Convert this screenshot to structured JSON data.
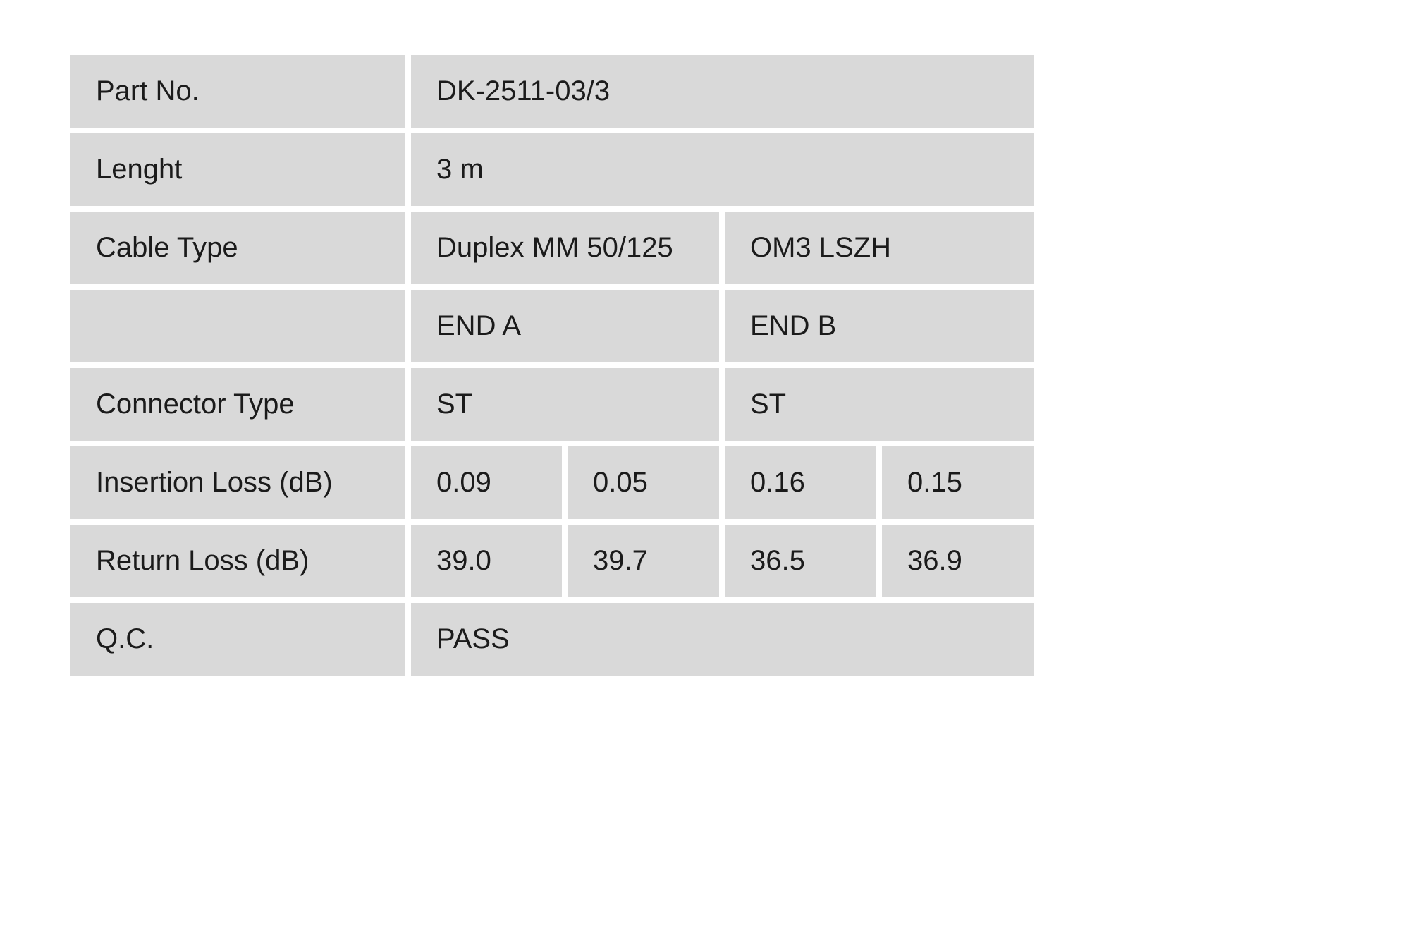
{
  "colors": {
    "cell_background": "#d9d9d9",
    "page_background": "#ffffff",
    "text": "#1b1b1b"
  },
  "table": {
    "part_no": {
      "label": "Part No.",
      "value": "DK-2511-03/3"
    },
    "length": {
      "label": "Lenght",
      "value": "3 m"
    },
    "cable_type": {
      "label": "Cable Type",
      "spec": "Duplex MM 50/125",
      "jacket": "OM3 LSZH"
    },
    "ends_header": {
      "label": "",
      "end_a": "END A",
      "end_b": "END B"
    },
    "connector_type": {
      "label": "Connector Type",
      "end_a": "ST",
      "end_b": "ST"
    },
    "insertion_loss": {
      "label": "Insertion Loss (dB)",
      "end_a_1": "0.09",
      "end_a_2": "0.05",
      "end_b_1": "0.16",
      "end_b_2": "0.15"
    },
    "return_loss": {
      "label": "Return Loss (dB)",
      "end_a_1": "39.0",
      "end_a_2": "39.7",
      "end_b_1": "36.5",
      "end_b_2": "36.9"
    },
    "qc": {
      "label": "Q.C.",
      "value": "PASS"
    }
  }
}
